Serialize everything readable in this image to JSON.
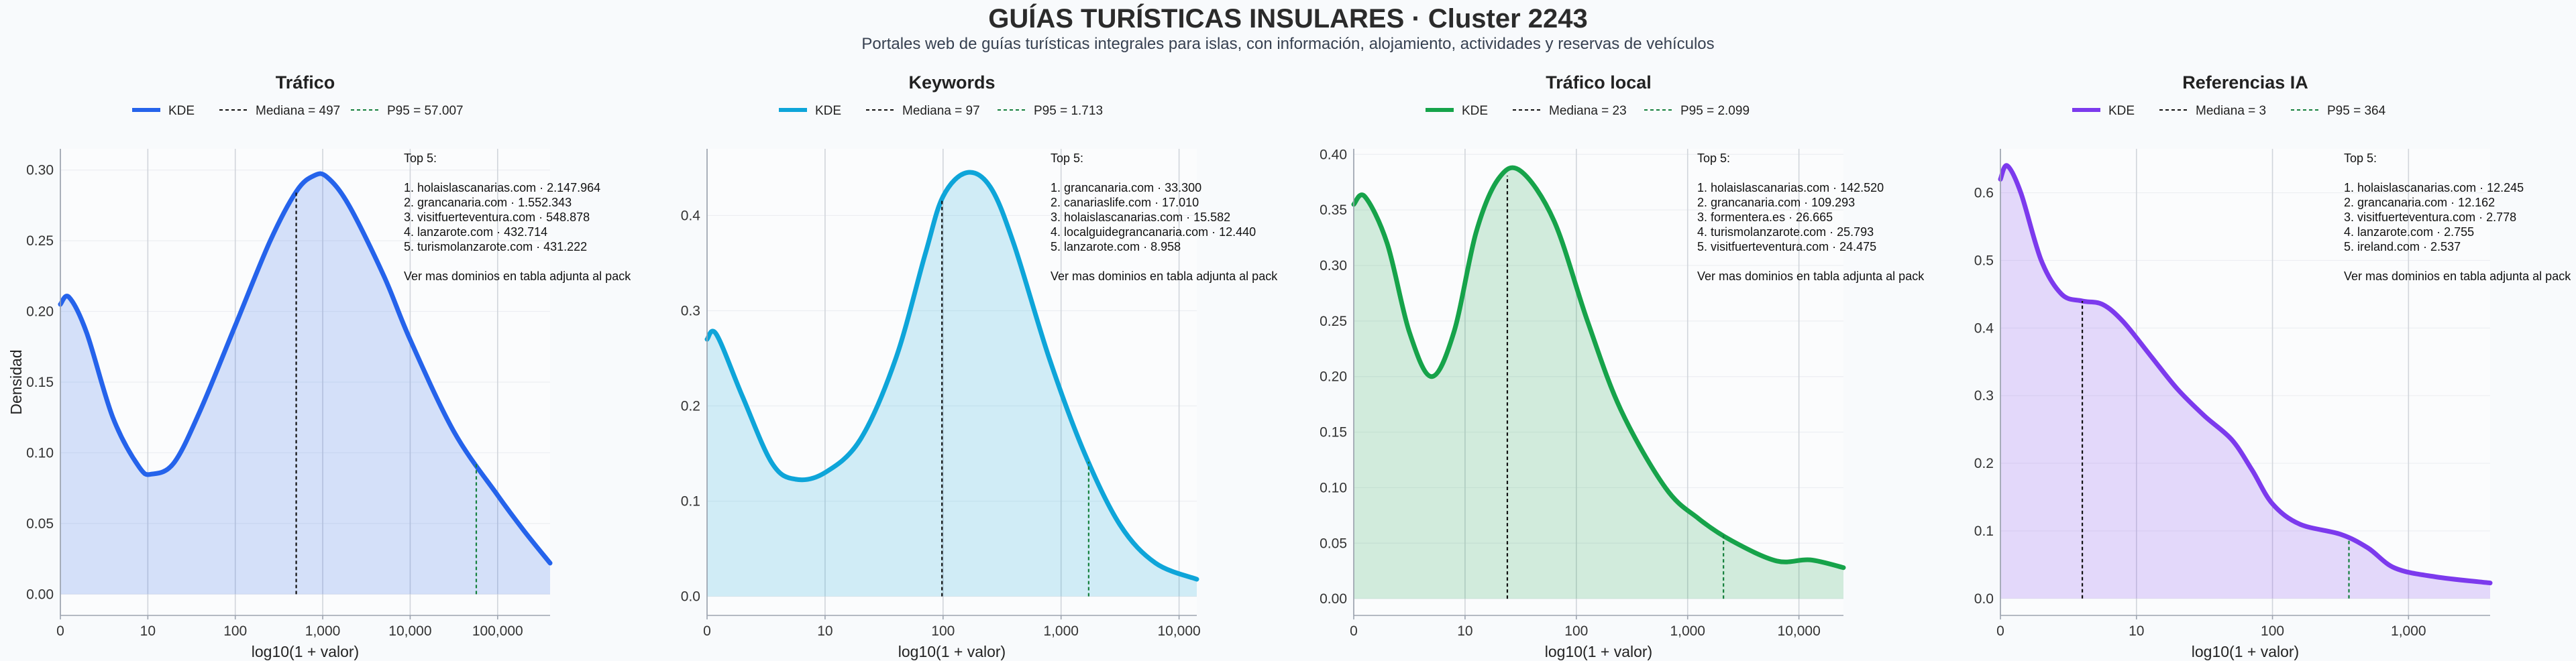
{
  "page": {
    "title": "GUÍAS TURÍSTICAS INSULARES · Cluster 2243",
    "subtitle": "Portales web de guías turísticas integrales para islas, con información, alojamiento, actividades y reservas de vehículos"
  },
  "colors": {
    "traffic": "#2563eb",
    "keywords": "#0ea5d9",
    "local": "#16a34a",
    "ai": "#7c3aed",
    "median_line": "#111111",
    "p95_line": "#15803d",
    "grid": "#d1d5db"
  },
  "chart_data": [
    {
      "type": "area",
      "title": "Tráfico",
      "xlabel": "log10(1 + valor)",
      "ylabel": "Densidad",
      "color": "#2563eb",
      "xlim": [
        0,
        5.6
      ],
      "ylim": [
        -0.015,
        0.315
      ],
      "xticks": [
        0,
        1,
        2,
        3,
        4,
        5
      ],
      "xtick_labels": [
        "0",
        "10",
        "100",
        "1,000",
        "10,000",
        "100,000"
      ],
      "yticks": [
        0,
        0.05,
        0.1,
        0.15,
        0.2,
        0.25,
        0.3
      ],
      "ytick_labels": [
        "0.00",
        "0.05",
        "0.10",
        "0.15",
        "0.20",
        "0.25",
        "0.30"
      ],
      "grid": true,
      "legend_position": "top",
      "legend": [
        "KDE",
        "Mediana = 497",
        "P95 = 57.007"
      ],
      "median": 2.697,
      "p95": 4.756,
      "x": [
        0,
        0.1,
        0.3,
        0.6,
        0.9,
        1.05,
        1.3,
        1.6,
        2.0,
        2.4,
        2.7,
        2.9,
        3.05,
        3.3,
        3.7,
        4.0,
        4.5,
        5.0,
        5.3,
        5.6
      ],
      "y": [
        0.205,
        0.21,
        0.185,
        0.125,
        0.09,
        0.085,
        0.093,
        0.13,
        0.19,
        0.25,
        0.285,
        0.296,
        0.295,
        0.275,
        0.225,
        0.18,
        0.115,
        0.07,
        0.045,
        0.022
      ],
      "annotation": [
        "Top 5:",
        "",
        "1. holaislascanarias.com · 2.147.964",
        "2. grancanaria.com · 1.552.343",
        "3. visitfuerteventura.com · 548.878",
        "4. lanzarote.com · 432.714",
        "5. turismolanzarote.com · 431.222",
        "",
        "Ver mas dominios en tabla adjunta al pack"
      ]
    },
    {
      "type": "area",
      "title": "Keywords",
      "xlabel": "log10(1 + valor)",
      "ylabel": "",
      "color": "#0ea5d9",
      "xlim": [
        0,
        4.15
      ],
      "ylim": [
        -0.02,
        0.47
      ],
      "xticks": [
        0,
        1,
        2,
        3,
        4
      ],
      "xtick_labels": [
        "0",
        "10",
        "100",
        "1,000",
        "10,000"
      ],
      "yticks": [
        0,
        0.1,
        0.2,
        0.3,
        0.4
      ],
      "ytick_labels": [
        "0.0",
        "0.1",
        "0.2",
        "0.3",
        "0.4"
      ],
      "grid": true,
      "legend_position": "top",
      "legend": [
        "KDE",
        "Mediana = 97",
        "P95 = 1.713"
      ],
      "median": 1.991,
      "p95": 3.234,
      "x": [
        0,
        0.08,
        0.3,
        0.55,
        0.75,
        1.0,
        1.3,
        1.6,
        1.85,
        2.0,
        2.2,
        2.4,
        2.6,
        2.9,
        3.2,
        3.5,
        3.8,
        4.15
      ],
      "y": [
        0.27,
        0.275,
        0.21,
        0.14,
        0.123,
        0.13,
        0.165,
        0.25,
        0.36,
        0.42,
        0.445,
        0.43,
        0.37,
        0.25,
        0.15,
        0.075,
        0.035,
        0.018
      ],
      "annotation": [
        "Top 5:",
        "",
        "1. grancanaria.com · 33.300",
        "2. canariaslife.com · 17.010",
        "3. holaislascanarias.com · 15.582",
        "4. localguidegrancanaria.com · 12.440",
        "5. lanzarote.com · 8.958",
        "",
        "Ver mas dominios en tabla adjunta al pack"
      ]
    },
    {
      "type": "area",
      "title": "Tráfico local",
      "xlabel": "log10(1 + valor)",
      "ylabel": "",
      "color": "#16a34a",
      "xlim": [
        0,
        4.4
      ],
      "ylim": [
        -0.015,
        0.405
      ],
      "xticks": [
        0,
        1,
        2,
        3,
        4
      ],
      "xtick_labels": [
        "0",
        "10",
        "100",
        "1,000",
        "10,000"
      ],
      "yticks": [
        0,
        0.05,
        0.1,
        0.15,
        0.2,
        0.25,
        0.3,
        0.35,
        0.4
      ],
      "ytick_labels": [
        "0.00",
        "0.05",
        "0.10",
        "0.15",
        "0.20",
        "0.25",
        "0.30",
        "0.35",
        "0.40"
      ],
      "grid": true,
      "legend_position": "top",
      "legend": [
        "KDE",
        "Mediana = 23",
        "P95 = 2.099"
      ],
      "median": 1.38,
      "p95": 3.322,
      "x": [
        0,
        0.1,
        0.3,
        0.5,
        0.7,
        0.9,
        1.1,
        1.3,
        1.5,
        1.8,
        2.1,
        2.4,
        2.8,
        3.1,
        3.4,
        3.8,
        4.1,
        4.4
      ],
      "y": [
        0.355,
        0.362,
        0.32,
        0.24,
        0.2,
        0.24,
        0.33,
        0.378,
        0.385,
        0.34,
        0.25,
        0.17,
        0.1,
        0.072,
        0.052,
        0.034,
        0.035,
        0.028
      ],
      "annotation": [
        "Top 5:",
        "",
        "1. holaislascanarias.com · 142.520",
        "2. grancanaria.com · 109.293",
        "3. formentera.es · 26.665",
        "4. turismolanzarote.com · 25.793",
        "5. visitfuerteventura.com · 24.475",
        "",
        "Ver mas dominios en tabla adjunta al pack"
      ]
    },
    {
      "type": "area",
      "title": "Referencias IA",
      "xlabel": "log10(1 + valor)",
      "ylabel": "",
      "color": "#7c3aed",
      "xlim": [
        0,
        3.6
      ],
      "ylim": [
        -0.025,
        0.665
      ],
      "xticks": [
        0,
        1,
        2,
        3
      ],
      "xtick_labels": [
        "0",
        "10",
        "100",
        "1,000"
      ],
      "yticks": [
        0,
        0.1,
        0.2,
        0.3,
        0.4,
        0.5,
        0.6
      ],
      "ytick_labels": [
        "0.0",
        "0.1",
        "0.2",
        "0.3",
        "0.4",
        "0.5",
        "0.6"
      ],
      "grid": true,
      "legend_position": "top",
      "legend": [
        "KDE",
        "Mediana = 3",
        "P95 = 364"
      ],
      "median": 0.602,
      "p95": 2.562,
      "x": [
        0,
        0.05,
        0.15,
        0.3,
        0.45,
        0.6,
        0.75,
        0.9,
        1.1,
        1.3,
        1.5,
        1.7,
        1.85,
        2.0,
        2.2,
        2.5,
        2.7,
        2.9,
        3.2,
        3.6
      ],
      "y": [
        0.62,
        0.64,
        0.6,
        0.5,
        0.45,
        0.44,
        0.435,
        0.41,
        0.36,
        0.31,
        0.27,
        0.235,
        0.19,
        0.14,
        0.11,
        0.095,
        0.075,
        0.045,
        0.032,
        0.023
      ],
      "annotation": [
        "Top 5:",
        "",
        "1. holaislascanarias.com · 12.245",
        "2. grancanaria.com · 12.162",
        "3. visitfuerteventura.com · 2.778",
        "4. lanzarote.com · 2.755",
        "5. ireland.com · 2.537",
        "",
        "Ver mas dominios en tabla adjunta al pack"
      ]
    }
  ]
}
